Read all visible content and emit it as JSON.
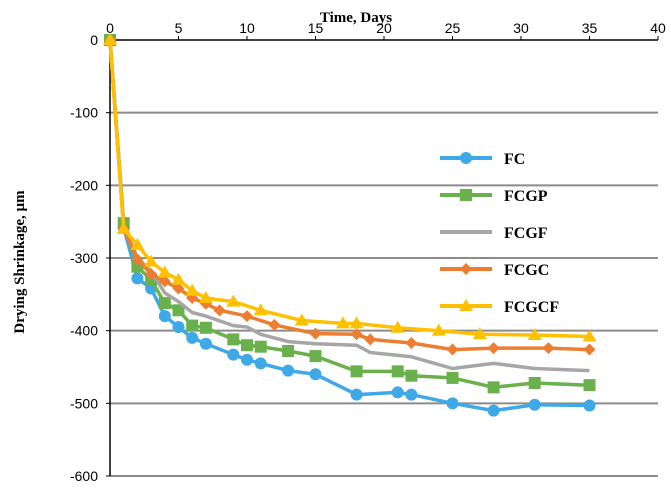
{
  "chart_data": {
    "type": "line",
    "xlabel": "Time, Days",
    "ylabel": "Drying Shrinkage, µm",
    "xlim": [
      0,
      40
    ],
    "ylim": [
      -600,
      0
    ],
    "xticks": [
      0,
      5,
      10,
      15,
      20,
      25,
      30,
      35,
      40
    ],
    "yticks": [
      0,
      -100,
      -200,
      -300,
      -400,
      -500,
      -600
    ],
    "x_axis_position": "top",
    "grid": "horizontal",
    "legend_position": "right",
    "series": [
      {
        "name": "FC",
        "color": "#3fa9e8",
        "marker": "circle",
        "points": [
          [
            0,
            0
          ],
          [
            1,
            -258
          ],
          [
            2,
            -328
          ],
          [
            3,
            -342
          ],
          [
            4,
            -380
          ],
          [
            5,
            -395
          ],
          [
            6,
            -410
          ],
          [
            7,
            -418
          ],
          [
            9,
            -433
          ],
          [
            10,
            -440
          ],
          [
            11,
            -445
          ],
          [
            13,
            -455
          ],
          [
            15,
            -460
          ],
          [
            18,
            -488
          ],
          [
            21,
            -485
          ],
          [
            22,
            -488
          ],
          [
            25,
            -500
          ],
          [
            28,
            -510
          ],
          [
            31,
            -502
          ],
          [
            35,
            -503
          ]
        ]
      },
      {
        "name": "FCGP",
        "color": "#6ab04c",
        "marker": "square",
        "points": [
          [
            0,
            0
          ],
          [
            1,
            -252
          ],
          [
            2,
            -312
          ],
          [
            3,
            -330
          ],
          [
            4,
            -362
          ],
          [
            5,
            -372
          ],
          [
            6,
            -393
          ],
          [
            7,
            -396
          ],
          [
            9,
            -412
          ],
          [
            10,
            -420
          ],
          [
            11,
            -422
          ],
          [
            13,
            -428
          ],
          [
            15,
            -435
          ],
          [
            18,
            -456
          ],
          [
            21,
            -456
          ],
          [
            22,
            -462
          ],
          [
            25,
            -465
          ],
          [
            28,
            -478
          ],
          [
            31,
            -472
          ],
          [
            35,
            -475
          ]
        ]
      },
      {
        "name": "FCGF",
        "color": "#a6a6a6",
        "marker": "none",
        "points": [
          [
            0,
            0
          ],
          [
            1,
            -255
          ],
          [
            2,
            -300
          ],
          [
            3,
            -318
          ],
          [
            4,
            -348
          ],
          [
            5,
            -360
          ],
          [
            6,
            -375
          ],
          [
            7,
            -380
          ],
          [
            9,
            -393
          ],
          [
            10,
            -395
          ],
          [
            11,
            -405
          ],
          [
            13,
            -415
          ],
          [
            15,
            -418
          ],
          [
            18,
            -420
          ],
          [
            19,
            -430
          ],
          [
            22,
            -436
          ],
          [
            25,
            -452
          ],
          [
            28,
            -445
          ],
          [
            31,
            -452
          ],
          [
            35,
            -455
          ]
        ]
      },
      {
        "name": "FCGC",
        "color": "#ed7d31",
        "marker": "diamond",
        "points": [
          [
            0,
            0
          ],
          [
            1,
            -260
          ],
          [
            2,
            -302
          ],
          [
            3,
            -322
          ],
          [
            4,
            -332
          ],
          [
            5,
            -342
          ],
          [
            6,
            -355
          ],
          [
            7,
            -363
          ],
          [
            8,
            -372
          ],
          [
            10,
            -380
          ],
          [
            12,
            -392
          ],
          [
            15,
            -404
          ],
          [
            18,
            -405
          ],
          [
            19,
            -412
          ],
          [
            22,
            -417
          ],
          [
            25,
            -426
          ],
          [
            28,
            -424
          ],
          [
            32,
            -424
          ],
          [
            35,
            -426
          ]
        ]
      },
      {
        "name": "FCGCF",
        "color": "#ffc000",
        "marker": "triangle",
        "points": [
          [
            0,
            0
          ],
          [
            1,
            -260
          ],
          [
            2,
            -282
          ],
          [
            3,
            -305
          ],
          [
            4,
            -320
          ],
          [
            5,
            -330
          ],
          [
            6,
            -345
          ],
          [
            7,
            -355
          ],
          [
            9,
            -360
          ],
          [
            11,
            -372
          ],
          [
            14,
            -386
          ],
          [
            17,
            -390
          ],
          [
            18,
            -390
          ],
          [
            21,
            -396
          ],
          [
            24,
            -400
          ],
          [
            27,
            -405
          ],
          [
            31,
            -406
          ],
          [
            35,
            -408
          ]
        ]
      }
    ]
  }
}
